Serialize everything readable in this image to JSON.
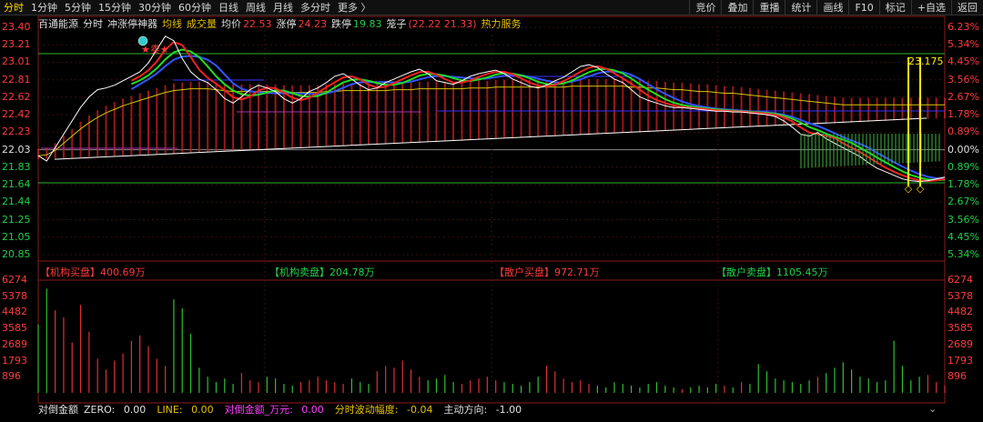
{
  "tabs": [
    "分时",
    "1分钟",
    "5分钟",
    "15分钟",
    "30分钟",
    "60分钟",
    "日线",
    "周线",
    "月线",
    "多分时",
    "更多 〉"
  ],
  "active_tab": 0,
  "right_tools": [
    "竞价",
    "叠加",
    "重播",
    "统计",
    "画线",
    "F10",
    "标记",
    "+自选",
    "返回"
  ],
  "info": {
    "stock_name": "百通能源",
    "mode": "分时",
    "tool": "冲涨停神器",
    "avg_line_label": "均线",
    "volume_label": "成交量",
    "avg_price_label": "均价",
    "avg_price": "22.53",
    "limit_up_label": "涨停",
    "limit_up": "24.23",
    "limit_down_label": "跌停",
    "limit_down": "19.83",
    "cage_label": "笼子",
    "cage_values": "(22.22 21.33)",
    "hot_service": "热力服务"
  },
  "price_axis": [
    "23.40",
    "23.21",
    "23.01",
    "22.81",
    "22.62",
    "22.42",
    "22.23",
    "22.03",
    "21.83",
    "21.64",
    "21.44",
    "21.25",
    "21.05",
    "20.85"
  ],
  "pct_axis": [
    "6.23%",
    "5.34%",
    "4.45%",
    "3.56%",
    "2.67%",
    "1.78%",
    "0.89%",
    "0.00%",
    "0.89%",
    "1.78%",
    "2.67%",
    "3.56%",
    "4.45%",
    "5.34%"
  ],
  "volume_axis": [
    "6274",
    "5378",
    "4482",
    "3585",
    "2689",
    "1793",
    "896"
  ],
  "flows": [
    {
      "label": "【机构买盘】",
      "value": "400.69万",
      "color": "#ff3b3b"
    },
    {
      "label": "【机构卖盘】",
      "value": "204.78万",
      "color": "#22d04a"
    },
    {
      "label": "【散户买盘】",
      "value": "972.71万",
      "color": "#ff3b3b"
    },
    {
      "label": "【散户卖盘】",
      "value": "1105.45万",
      "color": "#22d04a"
    }
  ],
  "annotations": {
    "sell_marker": "卖",
    "high_price": "23.175"
  },
  "bottom": {
    "indicator": "对倒金额",
    "zero_label": "ZERO:",
    "zero": "0.00",
    "line_label": "LINE:",
    "line": "0.00",
    "amount_label": "对倒金额_万元:",
    "amount": "0.00",
    "wave_label": "分时波动幅度:",
    "wave": "-0.04",
    "direction_label": "主动方向:",
    "direction": "-1.00"
  },
  "chart_data": {
    "type": "line",
    "prev_close": 22.03,
    "ylim": [
      20.85,
      23.4
    ],
    "price_series": [
      21.96,
      21.9,
      22.05,
      22.2,
      22.35,
      22.5,
      22.62,
      22.7,
      22.72,
      22.75,
      22.8,
      22.85,
      22.9,
      23.0,
      23.15,
      23.3,
      23.25,
      23.05,
      22.9,
      22.82,
      22.78,
      22.7,
      22.6,
      22.55,
      22.62,
      22.7,
      22.75,
      22.72,
      22.68,
      22.6,
      22.55,
      22.6,
      22.68,
      22.72,
      22.78,
      22.85,
      22.88,
      22.82,
      22.75,
      22.7,
      22.72,
      22.78,
      22.82,
      22.86,
      22.9,
      22.93,
      22.88,
      22.8,
      22.78,
      22.76,
      22.8,
      22.85,
      22.88,
      22.9,
      22.92,
      22.88,
      22.82,
      22.78,
      22.74,
      22.72,
      22.75,
      22.8,
      22.84,
      22.9,
      22.96,
      22.98,
      22.95,
      22.88,
      22.82,
      22.78,
      22.7,
      22.62,
      22.58,
      22.55,
      22.52,
      22.5,
      22.5,
      22.49,
      22.48,
      22.47,
      22.46,
      22.46,
      22.45,
      22.45,
      22.44,
      22.43,
      22.42,
      22.4,
      22.35,
      22.28,
      22.2,
      22.18,
      22.22,
      22.15,
      22.1,
      22.05,
      22.0,
      21.95,
      21.88,
      21.82,
      21.78,
      21.74,
      21.7,
      21.68,
      21.67,
      21.68,
      21.7,
      21.72
    ],
    "avg_series": [
      21.96,
      21.97,
      22.02,
      22.1,
      22.18,
      22.26,
      22.33,
      22.39,
      22.44,
      22.48,
      22.52,
      22.55,
      22.58,
      22.61,
      22.64,
      22.67,
      22.69,
      22.7,
      22.71,
      22.71,
      22.71,
      22.7,
      22.69,
      22.68,
      22.68,
      22.68,
      22.68,
      22.68,
      22.68,
      22.67,
      22.67,
      22.67,
      22.67,
      22.67,
      22.68,
      22.68,
      22.69,
      22.69,
      22.69,
      22.69,
      22.69,
      22.69,
      22.7,
      22.7,
      22.7,
      22.71,
      22.71,
      22.71,
      22.71,
      22.71,
      22.71,
      22.72,
      22.72,
      22.72,
      22.73,
      22.73,
      22.73,
      22.73,
      22.73,
      22.73,
      22.73,
      22.73,
      22.73,
      22.74,
      22.74,
      22.74,
      22.74,
      22.74,
      22.74,
      22.74,
      22.73,
      22.73,
      22.72,
      22.72,
      22.71,
      22.7,
      22.7,
      22.69,
      22.68,
      22.68,
      22.67,
      22.66,
      22.66,
      22.65,
      22.64,
      22.63,
      22.62,
      22.61,
      22.6,
      22.59,
      22.58,
      22.57,
      22.56,
      22.55,
      22.54,
      22.53,
      22.53,
      22.53,
      22.53,
      22.53,
      22.53,
      22.53,
      22.53,
      22.53,
      22.53,
      22.53,
      22.53,
      22.53
    ],
    "volume": [
      3800,
      5800,
      4600,
      4200,
      2800,
      4900,
      3400,
      1900,
      1300,
      1800,
      2200,
      2900,
      3200,
      2600,
      1900,
      1500,
      5200,
      4700,
      3300,
      1400,
      900,
      600,
      800,
      500,
      1100,
      700,
      600,
      900,
      800,
      500,
      400,
      600,
      700,
      900,
      700,
      600,
      500,
      800,
      600,
      500,
      1200,
      1500,
      1400,
      1800,
      1300,
      900,
      700,
      800,
      1000,
      600,
      500,
      700,
      800,
      900,
      700,
      600,
      500,
      400,
      600,
      900,
      1500,
      1200,
      800,
      600,
      700,
      500,
      400,
      300,
      600,
      500,
      400,
      300,
      500,
      600,
      400,
      300,
      200,
      300,
      400,
      300,
      500,
      400,
      300,
      600,
      500,
      1600,
      1200,
      800,
      700,
      600,
      500,
      700,
      900,
      1100,
      1400,
      1700,
      1300,
      900,
      800,
      600,
      700,
      2900,
      1500,
      700,
      900,
      1000,
      600,
      400
    ]
  }
}
